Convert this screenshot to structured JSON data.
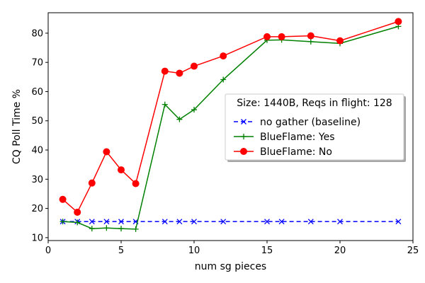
{
  "chart_data": {
    "type": "line",
    "title": "",
    "xlabel": "num sg pieces",
    "ylabel": "CQ Poll Time %",
    "xlim": [
      0,
      25
    ],
    "ylim": [
      9,
      87
    ],
    "xticks": [
      "0",
      "5",
      "10",
      "15",
      "20",
      "25"
    ],
    "yticks": [
      "10",
      "20",
      "30",
      "40",
      "50",
      "60",
      "70",
      "80"
    ],
    "grid": false,
    "legend": {
      "title": "Size: 1440B, Reqs in flight: 128",
      "placement": "center-right"
    },
    "series": [
      {
        "name": "no gather (baseline)",
        "color": "#0000ff",
        "linestyle": "dashed",
        "marker": "x",
        "x": [
          1,
          2,
          3,
          4,
          5,
          6,
          8,
          9,
          10,
          12,
          15,
          16,
          18,
          20,
          24
        ],
        "y": [
          15.5,
          15.5,
          15.5,
          15.5,
          15.5,
          15.5,
          15.5,
          15.5,
          15.5,
          15.5,
          15.5,
          15.5,
          15.5,
          15.5,
          15.5
        ]
      },
      {
        "name": "BlueFlame: Yes",
        "color": "#008000",
        "linestyle": "solid",
        "marker": "+",
        "x": [
          1,
          2,
          3,
          4,
          5,
          6,
          8,
          9,
          10,
          12,
          15,
          16,
          18,
          20,
          24
        ],
        "y": [
          15.5,
          15.2,
          13.1,
          13.3,
          13.1,
          12.9,
          55.6,
          50.5,
          53.8,
          64.1,
          77.6,
          77.7,
          77.1,
          76.5,
          82.3
        ]
      },
      {
        "name": "BlueFlame: No",
        "color": "#ff0000",
        "linestyle": "solid",
        "marker": "o",
        "x": [
          1,
          2,
          3,
          4,
          5,
          6,
          8,
          9,
          10,
          12,
          15,
          16,
          18,
          20,
          24
        ],
        "y": [
          23.1,
          18.7,
          28.7,
          39.4,
          33.2,
          28.5,
          67.0,
          66.3,
          68.7,
          72.2,
          78.8,
          78.8,
          79.1,
          77.4,
          84.0
        ]
      }
    ]
  }
}
